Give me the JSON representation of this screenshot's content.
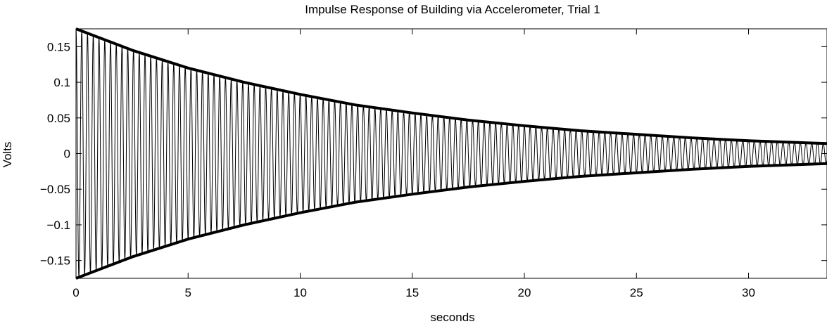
{
  "chart_data": {
    "type": "line",
    "title": "Impulse Response of Building via Accelerometer, Trial 1",
    "xlabel": "seconds",
    "ylabel": "Volts",
    "xlim": [
      0,
      33.5
    ],
    "ylim": [
      -0.175,
      0.175
    ],
    "xticks": [
      0,
      5,
      10,
      15,
      20,
      25,
      30
    ],
    "xtick_labels": [
      "0",
      "5",
      "10",
      "15",
      "20",
      "25",
      "30"
    ],
    "yticks": [
      0.15,
      0.1,
      0.05,
      0,
      -0.05,
      -0.1,
      -0.15
    ],
    "ytick_labels": [
      "0.15",
      "0.1",
      "0.05",
      "0",
      "−0.05",
      "−0.1",
      "−0.15"
    ],
    "grid": false,
    "series": [
      {
        "role": "signal",
        "model": "damped-sine",
        "amplitude": 0.175,
        "decay_rate": 0.075,
        "frequency_hz": 3.9,
        "x_range": [
          0,
          33.5
        ]
      },
      {
        "role": "upper-envelope",
        "x": [
          0,
          2.5,
          5,
          7.5,
          10,
          12.5,
          15,
          17.5,
          20,
          22.5,
          25,
          27.5,
          30,
          33.5
        ],
        "y": [
          0.175,
          0.145,
          0.12,
          0.1,
          0.083,
          0.068,
          0.057,
          0.047,
          0.039,
          0.032,
          0.027,
          0.022,
          0.018,
          0.014
        ]
      },
      {
        "role": "lower-envelope",
        "x": [
          0,
          2.5,
          5,
          7.5,
          10,
          12.5,
          15,
          17.5,
          20,
          22.5,
          25,
          27.5,
          30,
          33.5
        ],
        "y": [
          -0.175,
          -0.145,
          -0.12,
          -0.1,
          -0.083,
          -0.068,
          -0.057,
          -0.047,
          -0.039,
          -0.032,
          -0.027,
          -0.022,
          -0.018,
          -0.014
        ]
      }
    ]
  }
}
